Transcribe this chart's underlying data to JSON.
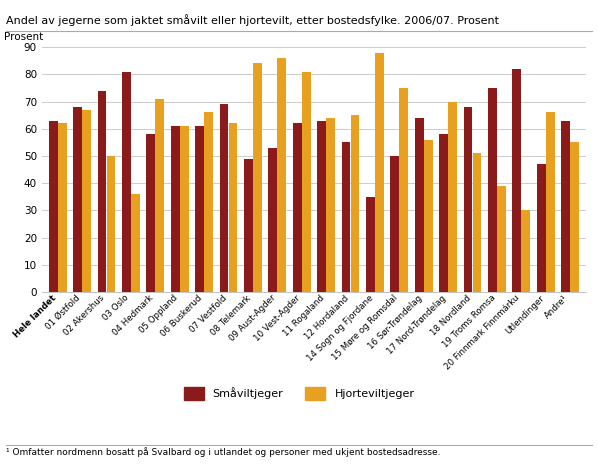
{
  "title": "Andel av jegerne som jaktet småvilt eller hjortevilt, etter bostedsfylke. 2006/07. Prosent",
  "ylabel": "Prosent",
  "categories": [
    "Hele landet",
    "01 Østfold",
    "02 Akershus",
    "03 Oslo",
    "04 Hedmark",
    "05 Oppland",
    "06 Buskerud",
    "07 Vestfold",
    "08 Telemark",
    "09 Aust-Agder",
    "10 Vest-Agder",
    "11 Rogaland",
    "12 Hordaland",
    "14 Sogn og Fjordane",
    "15 Møre og Romsdal",
    "16 Sør-Trøndelag",
    "17 Nord-Trøndelag",
    "18 Nordland",
    "19 Troms Romsa",
    "20 Finnmark Finnmárku",
    "Utlendinger",
    "Andre¹"
  ],
  "smavilt": [
    63,
    68,
    74,
    81,
    58,
    61,
    61,
    69,
    49,
    53,
    62,
    63,
    55,
    35,
    50,
    64,
    58,
    68,
    75,
    82,
    47,
    63
  ],
  "hjortevilt": [
    62,
    67,
    50,
    36,
    71,
    61,
    66,
    62,
    84,
    86,
    81,
    64,
    65,
    88,
    75,
    56,
    70,
    51,
    39,
    30,
    66,
    55
  ],
  "smavilt_color": "#8B1A1A",
  "hjortevilt_color": "#E8A020",
  "background_color": "#ffffff",
  "grid_color": "#cccccc",
  "ylim": [
    0,
    90
  ],
  "yticks": [
    0,
    10,
    20,
    30,
    40,
    50,
    60,
    70,
    80,
    90
  ],
  "legend_smavilt": "Småviltjeger",
  "legend_hjortevilt": "Hjorteviltjeger",
  "footnote": "¹ Omfatter nordmenn bosatt på Svalbard og i utlandet og personer med ukjent bostedsadresse."
}
